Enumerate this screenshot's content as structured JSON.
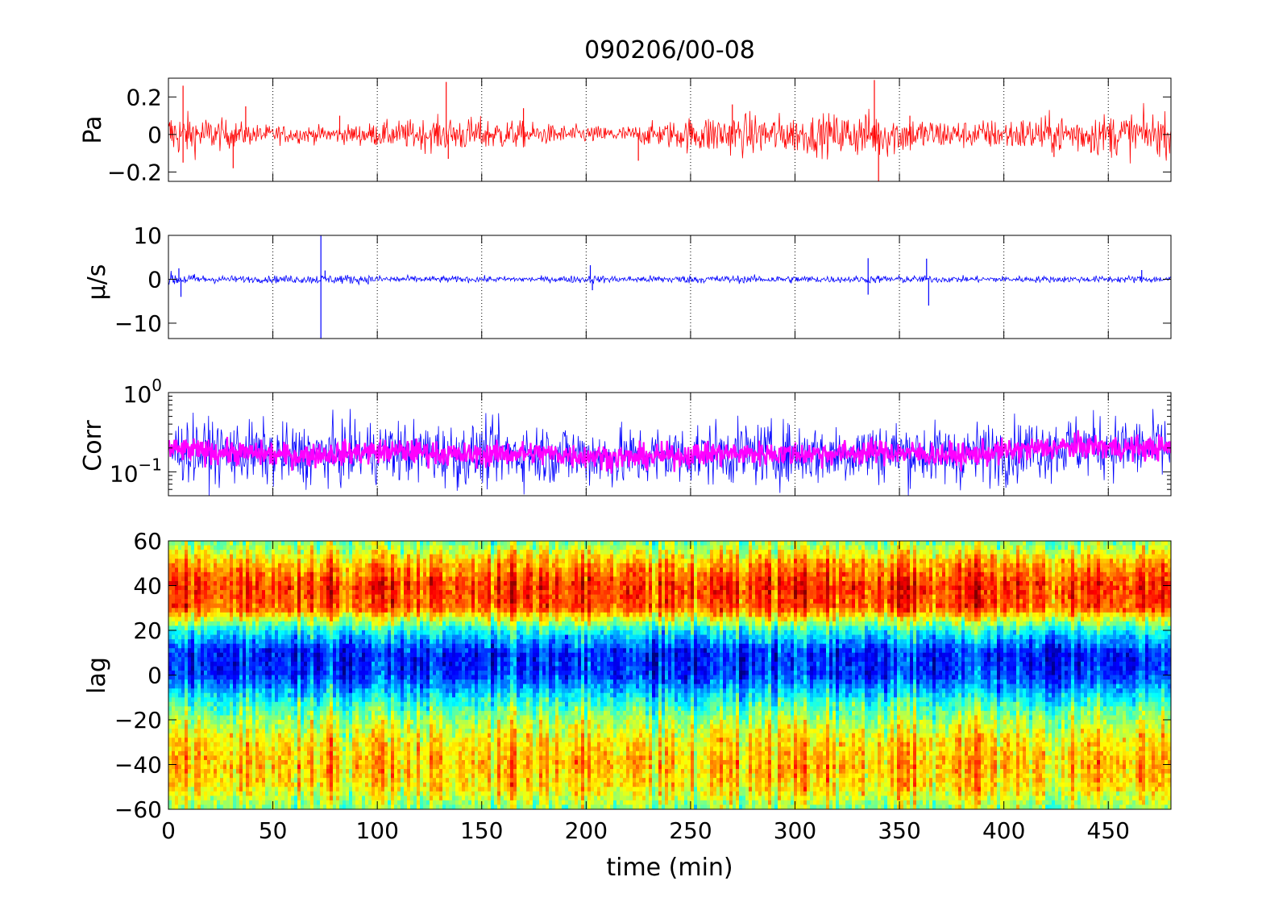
{
  "title": "090206/00-08",
  "chart_data": [
    {
      "type": "line",
      "ylabel": "Pa",
      "xlim": [
        0,
        480
      ],
      "ylim": [
        -0.25,
        0.3
      ],
      "yticks": [
        {
          "value": -0.2,
          "label": "−0.2"
        },
        {
          "value": 0,
          "label": "0"
        },
        {
          "value": 0.2,
          "label": "0.2"
        }
      ],
      "xticks": [
        0,
        50,
        100,
        150,
        200,
        250,
        300,
        350,
        400,
        450
      ],
      "grid": "x-dotted",
      "series": [
        {
          "color": "#ff0000",
          "x": [
            0,
            20,
            40,
            60,
            80,
            100,
            120,
            140,
            160,
            180,
            200,
            220,
            240,
            260,
            280,
            300,
            320,
            340,
            360,
            380,
            400,
            420,
            440,
            460,
            480
          ],
          "amplitude": [
            0.07,
            0.05,
            0.03,
            0.025,
            0.025,
            0.035,
            0.045,
            0.05,
            0.045,
            0.03,
            0.025,
            0.025,
            0.04,
            0.06,
            0.06,
            0.055,
            0.06,
            0.07,
            0.05,
            0.04,
            0.045,
            0.055,
            0.06,
            0.065,
            0.06
          ],
          "spikes": [
            [
              7,
              0.26
            ],
            [
              7,
              -0.15
            ],
            [
              31,
              -0.18
            ],
            [
              37,
              0.15
            ],
            [
              82,
              0.1
            ],
            [
              133,
              0.28
            ],
            [
              134,
              -0.13
            ],
            [
              170,
              0.14
            ],
            [
              225,
              -0.14
            ],
            [
              270,
              0.16
            ],
            [
              338,
              0.29
            ],
            [
              340,
              -0.25
            ],
            [
              355,
              0.1
            ],
            [
              424,
              -0.12
            ]
          ]
        }
      ]
    },
    {
      "type": "line",
      "ylabel": "μ/s",
      "xlim": [
        0,
        480
      ],
      "ylim": [
        -13.5,
        10
      ],
      "yticks": [
        {
          "value": -10,
          "label": "−10"
        },
        {
          "value": 0,
          "label": "0"
        },
        {
          "value": 10,
          "label": "10"
        }
      ],
      "xticks": [
        0,
        50,
        100,
        150,
        200,
        250,
        300,
        350,
        400,
        450
      ],
      "grid": "x-dotted",
      "series": [
        {
          "color": "#0000ff",
          "x": [
            0,
            20,
            40,
            60,
            80,
            100,
            120,
            140,
            160,
            180,
            200,
            220,
            240,
            260,
            280,
            300,
            320,
            340,
            360,
            380,
            400,
            420,
            440,
            460,
            480
          ],
          "amplitude": [
            0.9,
            0.5,
            0.4,
            0.5,
            0.6,
            0.5,
            0.4,
            0.4,
            0.35,
            0.35,
            0.5,
            0.4,
            0.5,
            0.5,
            0.45,
            0.5,
            0.4,
            0.5,
            0.45,
            0.4,
            0.4,
            0.4,
            0.4,
            0.45,
            0.4
          ],
          "spikes": [
            [
              5,
              2.5
            ],
            [
              6,
              -4
            ],
            [
              73,
              10
            ],
            [
              73,
              -13.5
            ],
            [
              75,
              2
            ],
            [
              202,
              3.2
            ],
            [
              203,
              -2.5
            ],
            [
              335,
              4.8
            ],
            [
              335,
              -3.5
            ],
            [
              363,
              4.7
            ],
            [
              364,
              -6
            ],
            [
              466,
              2.1
            ]
          ]
        }
      ]
    },
    {
      "type": "line",
      "ylabel": "Corr",
      "yscale": "log",
      "xlim": [
        0,
        480
      ],
      "ylim": [
        0.05,
        1
      ],
      "yticks": [
        {
          "value": 0.1,
          "base": "10",
          "exponent": "−1"
        },
        {
          "value": 1,
          "base": "10",
          "exponent": "0"
        }
      ],
      "xticks": [
        0,
        50,
        100,
        150,
        200,
        250,
        300,
        350,
        400,
        450
      ],
      "grid": "x-dotted",
      "series": [
        {
          "color": "#0000ff",
          "x": [
            0,
            20,
            40,
            60,
            80,
            100,
            120,
            140,
            160,
            180,
            200,
            220,
            240,
            260,
            280,
            300,
            320,
            340,
            360,
            380,
            400,
            420,
            440,
            460,
            480
          ],
          "center": [
            0.19,
            0.18,
            0.17,
            0.16,
            0.17,
            0.18,
            0.18,
            0.16,
            0.17,
            0.17,
            0.16,
            0.15,
            0.16,
            0.17,
            0.17,
            0.17,
            0.17,
            0.18,
            0.17,
            0.16,
            0.18,
            0.2,
            0.21,
            0.2,
            0.2
          ],
          "spread": 0.55
        },
        {
          "color": "#ff00ff",
          "x": [
            0,
            20,
            40,
            60,
            80,
            100,
            120,
            140,
            160,
            180,
            200,
            220,
            240,
            260,
            280,
            300,
            320,
            340,
            360,
            380,
            400,
            420,
            440,
            460,
            480
          ],
          "center": [
            0.19,
            0.18,
            0.17,
            0.16,
            0.17,
            0.18,
            0.18,
            0.16,
            0.17,
            0.17,
            0.16,
            0.15,
            0.16,
            0.17,
            0.17,
            0.17,
            0.17,
            0.18,
            0.17,
            0.16,
            0.18,
            0.2,
            0.21,
            0.2,
            0.2
          ],
          "spread": 0.22
        }
      ]
    },
    {
      "type": "heatmap",
      "ylabel": "lag",
      "xlabel": "time (min)",
      "colormap": "jet",
      "xlim": [
        0,
        480
      ],
      "ylim": [
        -60,
        60
      ],
      "yticks": [
        {
          "value": -60,
          "label": "−60"
        },
        {
          "value": -40,
          "label": "−40"
        },
        {
          "value": -20,
          "label": "−20"
        },
        {
          "value": 0,
          "label": "0"
        },
        {
          "value": 20,
          "label": "20"
        },
        {
          "value": 40,
          "label": "40"
        },
        {
          "value": 60,
          "label": "60"
        }
      ],
      "xticks": [
        0,
        50,
        100,
        150,
        200,
        250,
        300,
        350,
        400,
        450
      ],
      "lag_profile": [
        {
          "lag": -60,
          "level": 0.52
        },
        {
          "lag": -50,
          "level": 0.66
        },
        {
          "lag": -40,
          "level": 0.7
        },
        {
          "lag": -30,
          "level": 0.66
        },
        {
          "lag": -20,
          "level": 0.55
        },
        {
          "lag": -10,
          "level": 0.38
        },
        {
          "lag": 0,
          "level": 0.18
        },
        {
          "lag": 10,
          "level": 0.16
        },
        {
          "lag": 20,
          "level": 0.4
        },
        {
          "lag": 30,
          "level": 0.8
        },
        {
          "lag": 40,
          "level": 0.84
        },
        {
          "lag": 50,
          "level": 0.72
        },
        {
          "lag": 60,
          "level": 0.5
        }
      ]
    }
  ]
}
